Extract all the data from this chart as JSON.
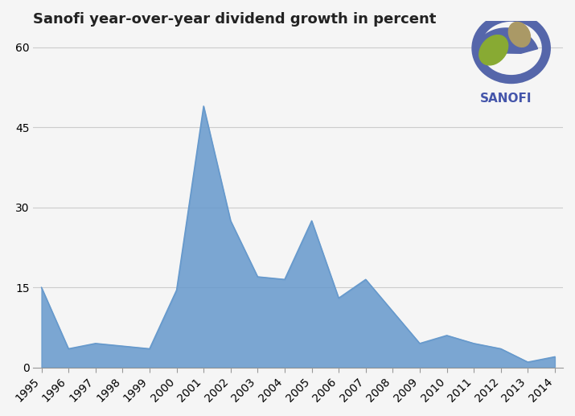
{
  "title": "Sanofi year-over-year dividend growth in percent",
  "years": [
    1995,
    1996,
    1997,
    1998,
    1999,
    2000,
    2001,
    2002,
    2003,
    2004,
    2005,
    2006,
    2007,
    2008,
    2009,
    2010,
    2011,
    2012,
    2013,
    2014
  ],
  "values": [
    15.0,
    3.5,
    4.5,
    4.0,
    3.5,
    14.5,
    49.0,
    27.5,
    17.0,
    16.5,
    27.5,
    13.0,
    16.5,
    10.5,
    4.5,
    6.0,
    4.5,
    3.5,
    1.0,
    2.0
  ],
  "fill_color": "#6699cc",
  "fill_alpha": 0.85,
  "bg_color": "#f5f5f5",
  "grid_color": "#cccccc",
  "yticks": [
    0,
    15,
    30,
    45,
    60
  ],
  "ylim": [
    0,
    62
  ],
  "title_fontsize": 13,
  "tick_fontsize": 10,
  "sanofi_text_color": "#4455aa",
  "logo_colors": {
    "blue": "#5566aa",
    "green": "#88aa33",
    "tan": "#aa9966"
  }
}
